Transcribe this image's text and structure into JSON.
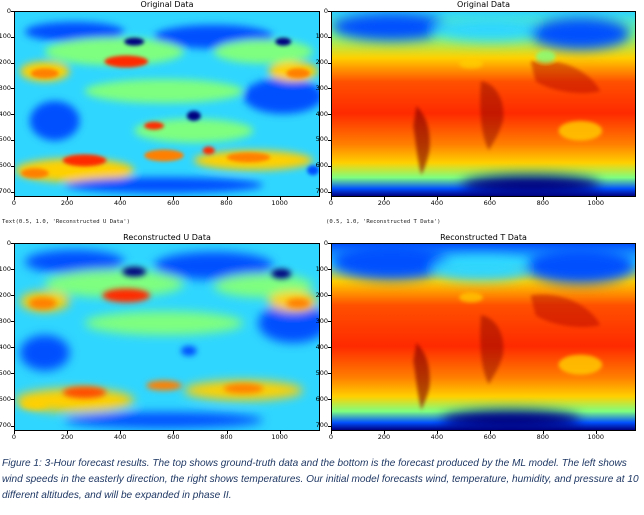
{
  "panels": [
    {
      "title": "Original Data",
      "kind": "u"
    },
    {
      "title": "Original Data",
      "kind": "t"
    },
    {
      "title": "Reconstructed U Data",
      "kind": "u"
    },
    {
      "title": "Reconstructed T Data",
      "kind": "t"
    }
  ],
  "axes": {
    "y_ticks": [
      "700",
      "600",
      "500",
      "400",
      "300",
      "200",
      "100",
      "0"
    ],
    "x_ticks": [
      "0",
      "200",
      "400",
      "600",
      "800",
      "1000"
    ]
  },
  "outputs": {
    "left": "Text(0.5, 1.0, 'Reconstructed U Data')",
    "right": "(0.5, 1.0, 'Reconstructed T Data')"
  },
  "caption": "Figure 1: 3-Hour forecast results. The top shows ground-truth data and the bottom is the forecast produced by the ML model. The left shows wind speeds in the easterly direction, the right shows temperatures. Our initial model forecasts wind, temperature, humidity, and pressure at 10 different altitudes, and will be expanded in phase II.",
  "colors": {
    "jet_dark_blue": "#00007f",
    "jet_blue": "#0050ff",
    "jet_cyan": "#2fd6ff",
    "jet_green": "#7fff7f",
    "jet_yellow": "#ffd000",
    "jet_red": "#ff2a00",
    "jet_dark_red": "#7f0000",
    "caption_text": "#1f3864"
  }
}
